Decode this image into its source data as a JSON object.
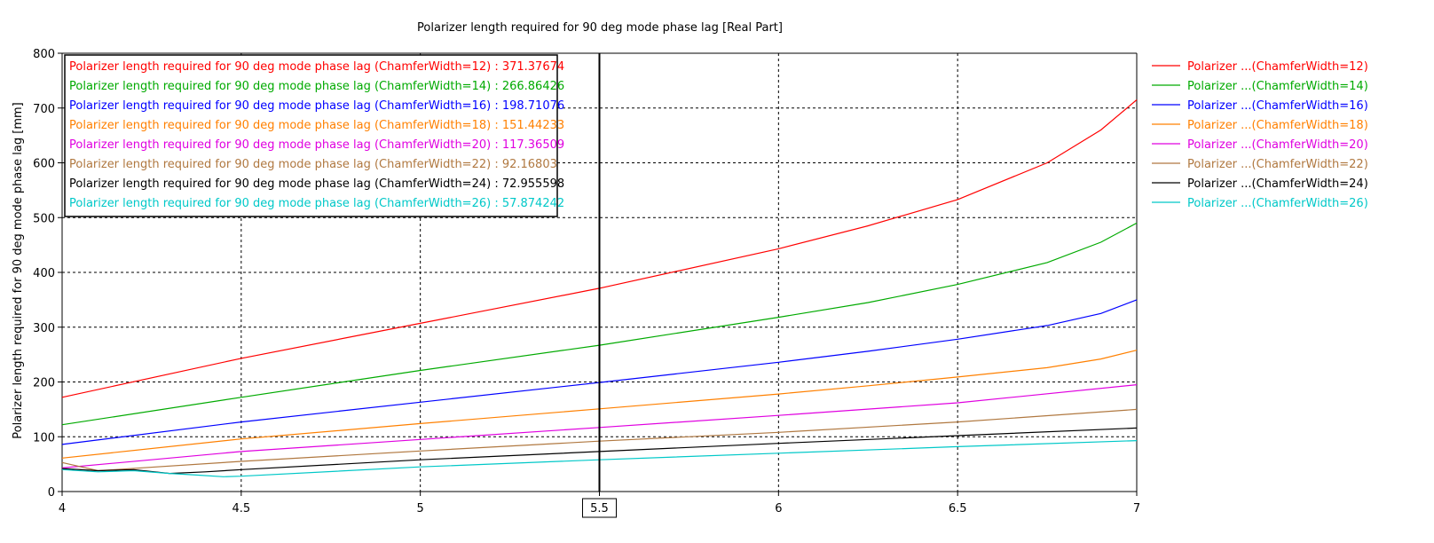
{
  "chart_data": {
    "type": "line",
    "title": "Polarizer length required for 90 deg mode phase lag [Real Part]",
    "xlabel": "",
    "ylabel": "Polarizer length required for 90 deg mode phase lag [mm]",
    "xlim": [
      4,
      7
    ],
    "ylim": [
      0,
      800
    ],
    "x_ticks": [
      "4",
      "4.5",
      "5",
      "5.5",
      "6",
      "6.5",
      "7"
    ],
    "y_ticks": [
      "0",
      "100",
      "200",
      "300",
      "400",
      "500",
      "600",
      "700",
      "800"
    ],
    "grid": true,
    "legend_position": "right",
    "marker": {
      "x": 5.5,
      "label": "5.5"
    },
    "series": [
      {
        "name": "Polarizer ...(ChamferWidth=12)",
        "color": "#ff0000",
        "readout": "Polarizer length required for 90 deg mode phase lag (ChamferWidth=12) : 371.37674",
        "x": [
          4,
          4.5,
          5,
          5.5,
          6,
          6.25,
          6.5,
          6.75,
          6.9,
          7
        ],
        "y": [
          172,
          243,
          307,
          371,
          443,
          485,
          533,
          600,
          660,
          715
        ]
      },
      {
        "name": "Polarizer ...(ChamferWidth=14)",
        "color": "#00aa00",
        "readout": "Polarizer length required for 90 deg mode phase lag (ChamferWidth=14) : 266.86426",
        "x": [
          4,
          4.5,
          5,
          5.5,
          6,
          6.25,
          6.5,
          6.75,
          6.9,
          7
        ],
        "y": [
          122,
          172,
          221,
          267,
          318,
          345,
          378,
          418,
          455,
          490
        ]
      },
      {
        "name": "Polarizer ...(ChamferWidth=16)",
        "color": "#0000ff",
        "readout": "Polarizer length required for 90 deg mode phase lag (ChamferWidth=16) : 198.71076",
        "x": [
          4,
          4.5,
          5,
          5.5,
          6,
          6.25,
          6.5,
          6.75,
          6.9,
          7
        ],
        "y": [
          86,
          127,
          163,
          199,
          236,
          256,
          278,
          303,
          325,
          350
        ]
      },
      {
        "name": "Polarizer ...(ChamferWidth=18)",
        "color": "#ff8000",
        "readout": "Polarizer length required for 90 deg mode phase lag (ChamferWidth=18) : 151.44233",
        "x": [
          4,
          4.5,
          5,
          5.5,
          6,
          6.25,
          6.5,
          6.75,
          6.9,
          7
        ],
        "y": [
          61,
          96,
          124,
          151,
          178,
          193,
          209,
          226,
          242,
          258
        ]
      },
      {
        "name": "Polarizer ...(ChamferWidth=20)",
        "color": "#e000e0",
        "readout": "Polarizer length required for 90 deg mode phase lag (ChamferWidth=20) : 117.36509",
        "x": [
          4,
          4.5,
          5,
          5.5,
          6,
          6.5,
          7
        ],
        "y": [
          43,
          73,
          95,
          117,
          139,
          162,
          195
        ]
      },
      {
        "name": "Polarizer ...(ChamferWidth=22)",
        "color": "#b07840",
        "readout": "Polarizer length required for 90 deg mode phase lag (ChamferWidth=22) : 92.16803",
        "x": [
          4,
          4.1,
          4.5,
          5,
          5.5,
          6,
          6.5,
          7
        ],
        "y": [
          53,
          38,
          55,
          74,
          92,
          108,
          127,
          150
        ]
      },
      {
        "name": "Polarizer ...(ChamferWidth=24)",
        "color": "#000000",
        "readout": "Polarizer length required for 90 deg mode phase lag (ChamferWidth=24) : 72.955598",
        "x": [
          4,
          4.1,
          4.2,
          4.3,
          4.4,
          4.5,
          5,
          5.5,
          6,
          6.5,
          7
        ],
        "y": [
          42,
          38,
          40,
          33,
          36,
          40,
          58,
          73,
          88,
          102,
          116
        ]
      },
      {
        "name": "Polarizer ...(ChamferWidth=26)",
        "color": "#00c8c8",
        "readout": "Polarizer length required for 90 deg mode phase lag (ChamferWidth=26) : 57.874242",
        "x": [
          4,
          4.1,
          4.2,
          4.3,
          4.38,
          4.45,
          4.5,
          5,
          5.5,
          6,
          6.5,
          7
        ],
        "y": [
          40,
          36,
          38,
          33,
          30,
          27,
          28,
          45,
          58,
          70,
          82,
          93
        ]
      }
    ]
  }
}
